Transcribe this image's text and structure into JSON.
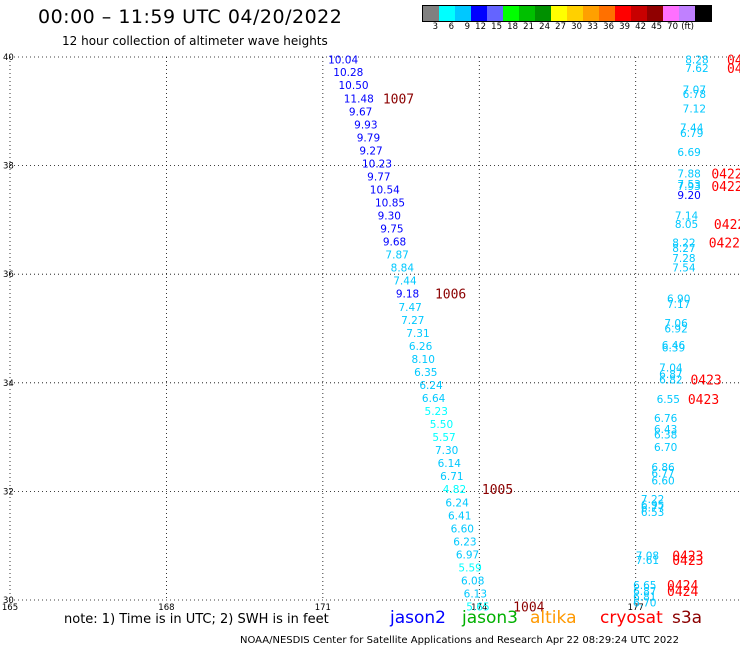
{
  "title": "00:00 – 11:59 UTC 04/20/2022",
  "subtitle": "12 hour collection of altimeter wave heights",
  "colorbar": {
    "colors": [
      "#808080",
      "#00ffff",
      "#00c8ff",
      "#0000ff",
      "#6464ff",
      "#00ff00",
      "#00c000",
      "#009000",
      "#ffff00",
      "#ffd000",
      "#ffa000",
      "#ff7000",
      "#ff0000",
      "#c80000",
      "#900000",
      "#ff70ff",
      "#c080ff",
      "#000000"
    ],
    "labels": [
      "3",
      "6",
      "9",
      "12",
      "15",
      "18",
      "21",
      "24",
      "27",
      "30",
      "33",
      "36",
      "39",
      "42",
      "45",
      "70",
      "(ft)"
    ]
  },
  "note": "note: 1) Time is in UTC; 2) SWH is in feet",
  "missions": [
    {
      "name": "jason2",
      "color": "#0000ff"
    },
    {
      "name": "jason3",
      "color": "#00b000"
    },
    {
      "name": "altika",
      "color": "#ff9900"
    },
    {
      "name": "cryosat",
      "color": "#ff0000"
    },
    {
      "name": "s3a",
      "color": "#8b0000"
    }
  ],
  "footer": "NOAA/NESDIS Center for Satellite Applications and Research    Apr 22 08:29:24 UTC 2022",
  "chart_data": {
    "type": "scatter",
    "xlim": [
      165,
      179
    ],
    "ylim": [
      30,
      40
    ],
    "xticks": [
      "165",
      "168",
      "171",
      "174",
      "177"
    ],
    "yticks": [
      "30",
      "32",
      "34",
      "36",
      "38",
      "40"
    ],
    "grid": true,
    "track1": [
      {
        "x": 171.1,
        "y": 39.95,
        "v": "10.04",
        "c": "#0000ff"
      },
      {
        "x": 171.2,
        "y": 39.72,
        "v": "10.28",
        "c": "#0000ff"
      },
      {
        "x": 171.3,
        "y": 39.48,
        "v": "10.50",
        "c": "#0000ff"
      },
      {
        "x": 171.4,
        "y": 39.24,
        "v": "11.48",
        "c": "#0000ff"
      },
      {
        "x": 171.5,
        "y": 39.0,
        "v": "9.67",
        "c": "#0000ff"
      },
      {
        "x": 171.6,
        "y": 38.76,
        "v": "9.93",
        "c": "#0000ff"
      },
      {
        "x": 171.65,
        "y": 38.52,
        "v": "9.79",
        "c": "#0000ff"
      },
      {
        "x": 171.7,
        "y": 38.28,
        "v": "9.27",
        "c": "#0000ff"
      },
      {
        "x": 171.75,
        "y": 38.04,
        "v": "10.23",
        "c": "#0000ff"
      },
      {
        "x": 171.85,
        "y": 37.8,
        "v": "9.77",
        "c": "#0000ff"
      },
      {
        "x": 171.9,
        "y": 37.56,
        "v": "10.54",
        "c": "#0000ff"
      },
      {
        "x": 172.0,
        "y": 37.32,
        "v": "10.85",
        "c": "#0000ff"
      },
      {
        "x": 172.05,
        "y": 37.08,
        "v": "9.30",
        "c": "#0000ff"
      },
      {
        "x": 172.1,
        "y": 36.84,
        "v": "9.75",
        "c": "#0000ff"
      },
      {
        "x": 172.15,
        "y": 36.6,
        "v": "9.68",
        "c": "#0000ff"
      },
      {
        "x": 172.2,
        "y": 36.36,
        "v": "7.87",
        "c": "#00c8ff"
      },
      {
        "x": 172.3,
        "y": 36.12,
        "v": "8.84",
        "c": "#00c8ff"
      },
      {
        "x": 172.35,
        "y": 35.88,
        "v": "7.44",
        "c": "#00c8ff"
      },
      {
        "x": 172.4,
        "y": 35.64,
        "v": "9.18",
        "c": "#0000ff"
      },
      {
        "x": 172.45,
        "y": 35.4,
        "v": "7.47",
        "c": "#00c8ff"
      },
      {
        "x": 172.5,
        "y": 35.16,
        "v": "7.27",
        "c": "#00c8ff"
      },
      {
        "x": 172.6,
        "y": 34.92,
        "v": "7.31",
        "c": "#00c8ff"
      },
      {
        "x": 172.65,
        "y": 34.68,
        "v": "6.26",
        "c": "#00c8ff"
      },
      {
        "x": 172.7,
        "y": 34.44,
        "v": "8.10",
        "c": "#00c8ff"
      },
      {
        "x": 172.75,
        "y": 34.2,
        "v": "6.35",
        "c": "#00c8ff"
      },
      {
        "x": 172.85,
        "y": 33.96,
        "v": "6.24",
        "c": "#00c8ff"
      },
      {
        "x": 172.9,
        "y": 33.72,
        "v": "6.64",
        "c": "#00c8ff"
      },
      {
        "x": 172.95,
        "y": 33.48,
        "v": "5.23",
        "c": "#00ffff"
      },
      {
        "x": 173.05,
        "y": 33.24,
        "v": "5.50",
        "c": "#00ffff"
      },
      {
        "x": 173.1,
        "y": 33.0,
        "v": "5.57",
        "c": "#00ffff"
      },
      {
        "x": 173.15,
        "y": 32.76,
        "v": "7.30",
        "c": "#00c8ff"
      },
      {
        "x": 173.2,
        "y": 32.52,
        "v": "6.14",
        "c": "#00c8ff"
      },
      {
        "x": 173.25,
        "y": 32.28,
        "v": "6.71",
        "c": "#00c8ff"
      },
      {
        "x": 173.3,
        "y": 32.04,
        "v": "4.82",
        "c": "#00ffff"
      },
      {
        "x": 173.35,
        "y": 31.8,
        "v": "6.24",
        "c": "#00c8ff"
      },
      {
        "x": 173.4,
        "y": 31.56,
        "v": "6.41",
        "c": "#00c8ff"
      },
      {
        "x": 173.45,
        "y": 31.32,
        "v": "6.60",
        "c": "#00c8ff"
      },
      {
        "x": 173.5,
        "y": 31.08,
        "v": "6.23",
        "c": "#00c8ff"
      },
      {
        "x": 173.55,
        "y": 30.84,
        "v": "6.97",
        "c": "#00c8ff"
      },
      {
        "x": 173.6,
        "y": 30.6,
        "v": "5.59",
        "c": "#00ffff"
      },
      {
        "x": 173.65,
        "y": 30.36,
        "v": "6.08",
        "c": "#00c8ff"
      },
      {
        "x": 173.7,
        "y": 30.12,
        "v": "6.13",
        "c": "#00c8ff"
      },
      {
        "x": 173.75,
        "y": 29.88,
        "v": "5.65",
        "c": "#00ffff"
      }
    ],
    "track2": [
      {
        "x": 177.95,
        "y": 39.95,
        "v": "8.28",
        "c": "#00c8ff"
      },
      {
        "x": 177.95,
        "y": 39.8,
        "v": "7.62",
        "c": "#00c8ff"
      },
      {
        "x": 177.9,
        "y": 39.4,
        "v": "7.07",
        "c": "#00c8ff"
      },
      {
        "x": 177.9,
        "y": 39.32,
        "v": "6.78",
        "c": "#00c8ff"
      },
      {
        "x": 177.9,
        "y": 39.05,
        "v": "7.12",
        "c": "#00c8ff"
      },
      {
        "x": 177.85,
        "y": 38.7,
        "v": "7.44",
        "c": "#00c8ff"
      },
      {
        "x": 177.85,
        "y": 38.6,
        "v": "6.79",
        "c": "#00c8ff"
      },
      {
        "x": 177.8,
        "y": 38.25,
        "v": "6.69",
        "c": "#00c8ff"
      },
      {
        "x": 177.8,
        "y": 37.85,
        "v": "7.88",
        "c": "#00c8ff"
      },
      {
        "x": 177.8,
        "y": 37.66,
        "v": "7.53",
        "c": "#00c8ff"
      },
      {
        "x": 177.8,
        "y": 37.62,
        "v": "7.93",
        "c": "#00c8ff"
      },
      {
        "x": 177.8,
        "y": 37.46,
        "v": "9.20",
        "c": "#0000ff"
      },
      {
        "x": 177.75,
        "y": 37.08,
        "v": "7.14",
        "c": "#00c8ff"
      },
      {
        "x": 177.75,
        "y": 36.92,
        "v": "8.05",
        "c": "#00c8ff"
      },
      {
        "x": 177.7,
        "y": 36.58,
        "v": "8.22",
        "c": "#00c8ff"
      },
      {
        "x": 177.7,
        "y": 36.48,
        "v": "8.27",
        "c": "#00c8ff"
      },
      {
        "x": 177.7,
        "y": 36.3,
        "v": "7.28",
        "c": "#00c8ff"
      },
      {
        "x": 177.7,
        "y": 36.12,
        "v": "7.54",
        "c": "#00c8ff"
      },
      {
        "x": 177.6,
        "y": 35.55,
        "v": "6.90",
        "c": "#00c8ff"
      },
      {
        "x": 177.6,
        "y": 35.45,
        "v": "7.17",
        "c": "#00c8ff"
      },
      {
        "x": 177.55,
        "y": 35.1,
        "v": "7.06",
        "c": "#00c8ff"
      },
      {
        "x": 177.55,
        "y": 35.0,
        "v": "6.92",
        "c": "#00c8ff"
      },
      {
        "x": 177.5,
        "y": 34.7,
        "v": "6.46",
        "c": "#00c8ff"
      },
      {
        "x": 177.5,
        "y": 34.65,
        "v": "6.39",
        "c": "#00c8ff"
      },
      {
        "x": 177.45,
        "y": 34.28,
        "v": "7.04",
        "c": "#00c8ff"
      },
      {
        "x": 177.45,
        "y": 34.16,
        "v": "6.87",
        "c": "#00c8ff"
      },
      {
        "x": 177.45,
        "y": 34.06,
        "v": "6.82",
        "c": "#00c8ff"
      },
      {
        "x": 177.4,
        "y": 33.7,
        "v": "6.55",
        "c": "#00c8ff"
      },
      {
        "x": 177.35,
        "y": 33.35,
        "v": "6.76",
        "c": "#00c8ff"
      },
      {
        "x": 177.35,
        "y": 33.15,
        "v": "6.43",
        "c": "#00c8ff"
      },
      {
        "x": 177.35,
        "y": 33.05,
        "v": "6.38",
        "c": "#00c8ff"
      },
      {
        "x": 177.35,
        "y": 32.82,
        "v": "6.70",
        "c": "#00c8ff"
      },
      {
        "x": 177.3,
        "y": 32.45,
        "v": "6.86",
        "c": "#00c8ff"
      },
      {
        "x": 177.3,
        "y": 32.34,
        "v": "6.77",
        "c": "#00c8ff"
      },
      {
        "x": 177.3,
        "y": 32.2,
        "v": "6.60",
        "c": "#00c8ff"
      },
      {
        "x": 177.1,
        "y": 31.86,
        "v": "7.22",
        "c": "#00c8ff"
      },
      {
        "x": 177.1,
        "y": 31.76,
        "v": "6.95",
        "c": "#00c8ff"
      },
      {
        "x": 177.1,
        "y": 31.7,
        "v": "6.77",
        "c": "#00c8ff"
      },
      {
        "x": 177.1,
        "y": 31.62,
        "v": "6.53",
        "c": "#00c8ff"
      },
      {
        "x": 177.0,
        "y": 30.82,
        "v": "7.08",
        "c": "#00c8ff"
      },
      {
        "x": 177.0,
        "y": 30.74,
        "v": "7.61",
        "c": "#00c8ff"
      },
      {
        "x": 176.95,
        "y": 30.28,
        "v": "6.65",
        "c": "#00c8ff"
      },
      {
        "x": 176.95,
        "y": 30.17,
        "v": "6.87",
        "c": "#00c8ff"
      },
      {
        "x": 176.95,
        "y": 30.06,
        "v": "6.81",
        "c": "#00c8ff"
      },
      {
        "x": 176.95,
        "y": 29.95,
        "v": "6.70",
        "c": "#00c8ff"
      }
    ],
    "time_labels": [
      {
        "x": 172.15,
        "y": 39.24,
        "t": "1007",
        "c": "#8b0000"
      },
      {
        "x": 173.15,
        "y": 35.64,
        "t": "1006",
        "c": "#8b0000"
      },
      {
        "x": 174.05,
        "y": 32.04,
        "t": "1005",
        "c": "#8b0000"
      },
      {
        "x": 174.65,
        "y": 29.88,
        "t": "1004",
        "c": "#8b0000"
      },
      {
        "x": 178.75,
        "y": 39.95,
        "t": "04",
        "c": "#ff0000"
      },
      {
        "x": 178.75,
        "y": 39.8,
        "t": "042",
        "c": "#ff0000"
      },
      {
        "x": 178.45,
        "y": 37.85,
        "t": "0422",
        "c": "#ff0000"
      },
      {
        "x": 178.45,
        "y": 37.62,
        "t": "0422",
        "c": "#ff0000"
      },
      {
        "x": 178.5,
        "y": 36.92,
        "t": "0422",
        "c": "#ff0000"
      },
      {
        "x": 178.4,
        "y": 36.58,
        "t": "0422",
        "c": "#ff0000"
      },
      {
        "x": 178.05,
        "y": 34.06,
        "t": "0423",
        "c": "#ff0000"
      },
      {
        "x": 178.0,
        "y": 33.7,
        "t": "0423",
        "c": "#ff0000"
      },
      {
        "x": 177.7,
        "y": 30.82,
        "t": "0423",
        "c": "#ff0000"
      },
      {
        "x": 177.7,
        "y": 30.74,
        "t": "0423",
        "c": "#ff0000"
      },
      {
        "x": 177.6,
        "y": 30.28,
        "t": "0424",
        "c": "#ff0000"
      },
      {
        "x": 177.6,
        "y": 30.17,
        "t": "0424",
        "c": "#ff0000"
      }
    ]
  }
}
